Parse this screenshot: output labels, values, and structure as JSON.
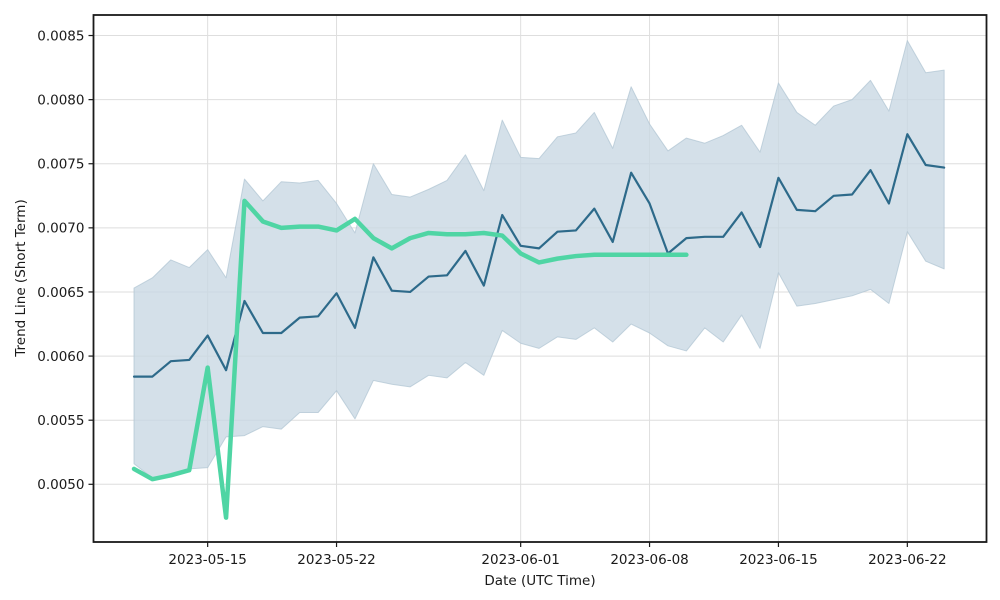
{
  "chart_data": {
    "type": "line",
    "title": "",
    "xlabel": "Date (UTC Time)",
    "ylabel": "Trend Line (Short Term)",
    "grid": true,
    "legend_position": "none",
    "x_dates": [
      "2023-05-11",
      "2023-05-12",
      "2023-05-13",
      "2023-05-14",
      "2023-05-15",
      "2023-05-16",
      "2023-05-17",
      "2023-05-18",
      "2023-05-19",
      "2023-05-20",
      "2023-05-21",
      "2023-05-22",
      "2023-05-23",
      "2023-05-24",
      "2023-05-25",
      "2023-05-26",
      "2023-05-27",
      "2023-05-28",
      "2023-05-29",
      "2023-05-30",
      "2023-05-31",
      "2023-06-01",
      "2023-06-02",
      "2023-06-03",
      "2023-06-04",
      "2023-06-05",
      "2023-06-06",
      "2023-06-07",
      "2023-06-08",
      "2023-06-09",
      "2023-06-10",
      "2023-06-11",
      "2023-06-12",
      "2023-06-13",
      "2023-06-14",
      "2023-06-15",
      "2023-06-16",
      "2023-06-17",
      "2023-06-18",
      "2023-06-19",
      "2023-06-20",
      "2023-06-21",
      "2023-06-22",
      "2023-06-23",
      "2023-06-24"
    ],
    "series": [
      {
        "name": "predicted-trend-line",
        "color": "#2d6a8a",
        "stroke_width": 2.2,
        "values": [
          0.00584,
          0.00584,
          0.00596,
          0.00597,
          0.00616,
          0.00589,
          0.00643,
          0.00618,
          0.00618,
          0.0063,
          0.00631,
          0.00649,
          0.00622,
          0.00677,
          0.00651,
          0.0065,
          0.00662,
          0.00663,
          0.00682,
          0.00655,
          0.0071,
          0.00686,
          0.00684,
          0.00697,
          0.00698,
          0.00715,
          0.00689,
          0.00743,
          0.00719,
          0.0068,
          0.00692,
          0.00693,
          0.00693,
          0.00712,
          0.00685,
          0.00739,
          0.00714,
          0.00713,
          0.00725,
          0.00726,
          0.00745,
          0.00719,
          0.00773,
          0.00749,
          0.00747
        ]
      },
      {
        "name": "actual-price-line",
        "color": "#4fd5a4",
        "stroke_width": 4.5,
        "values": [
          0.00512,
          0.00504,
          0.00507,
          0.00511,
          0.00591,
          0.00474,
          0.00721,
          0.00705,
          0.007,
          0.00701,
          0.00701,
          0.00698,
          0.00707,
          0.00692,
          0.00684,
          0.00692,
          0.00696,
          0.00695,
          0.00695,
          0.00696,
          0.00694,
          0.0068,
          0.00673,
          0.00676,
          0.00678,
          0.00679,
          0.00679,
          0.00679,
          0.00679,
          0.00679,
          0.00679
        ]
      }
    ],
    "band": {
      "name": "prediction-confidence-band",
      "fill": "#c8d7e3",
      "fill_opacity": 0.78,
      "edge_color": "#aec3d1",
      "upper": [
        0.00653,
        0.00661,
        0.00675,
        0.00669,
        0.00683,
        0.00661,
        0.00738,
        0.00721,
        0.00736,
        0.00735,
        0.00737,
        0.00719,
        0.00696,
        0.0075,
        0.00726,
        0.00724,
        0.0073,
        0.00737,
        0.00757,
        0.00729,
        0.00784,
        0.00755,
        0.00754,
        0.00771,
        0.00774,
        0.0079,
        0.00762,
        0.0081,
        0.00781,
        0.0076,
        0.0077,
        0.00766,
        0.00772,
        0.0078,
        0.00759,
        0.00813,
        0.0079,
        0.0078,
        0.00795,
        0.008,
        0.00815,
        0.00791,
        0.00846,
        0.00821,
        0.00823
      ],
      "lower": [
        0.00516,
        0.00505,
        0.00506,
        0.00512,
        0.00513,
        0.00537,
        0.00538,
        0.00545,
        0.00543,
        0.00556,
        0.00556,
        0.00573,
        0.00551,
        0.00581,
        0.00578,
        0.00576,
        0.00585,
        0.00583,
        0.00595,
        0.00585,
        0.0062,
        0.0061,
        0.00606,
        0.00615,
        0.00613,
        0.00622,
        0.00611,
        0.00625,
        0.00618,
        0.00608,
        0.00604,
        0.00622,
        0.00611,
        0.00632,
        0.00606,
        0.00665,
        0.00639,
        0.00641,
        0.00644,
        0.00647,
        0.00652,
        0.00641,
        0.00697,
        0.00674,
        0.00668
      ]
    },
    "x_ticks": [
      {
        "label": "2023-05-15",
        "index": 4
      },
      {
        "label": "2023-05-22",
        "index": 11
      },
      {
        "label": "2023-06-01",
        "index": 21
      },
      {
        "label": "2023-06-08",
        "index": 28
      },
      {
        "label": "2023-06-15",
        "index": 35
      },
      {
        "label": "2023-06-22",
        "index": 42
      }
    ],
    "y_ticks": [
      {
        "label": "0.0050",
        "value": 0.005
      },
      {
        "label": "0.0055",
        "value": 0.0055
      },
      {
        "label": "0.0060",
        "value": 0.006
      },
      {
        "label": "0.0065",
        "value": 0.0065
      },
      {
        "label": "0.0070",
        "value": 0.007
      },
      {
        "label": "0.0075",
        "value": 0.0075
      },
      {
        "label": "0.0080",
        "value": 0.008
      },
      {
        "label": "0.0085",
        "value": 0.0085
      }
    ],
    "xlim_index": [
      -2.2,
      46.3
    ],
    "ylim": [
      0.00455,
      0.00866
    ],
    "grid_color": "#dedede",
    "spine_color": "#1a1a1a",
    "tick_label_color": "#1a1a1a",
    "background": "#ffffff"
  }
}
